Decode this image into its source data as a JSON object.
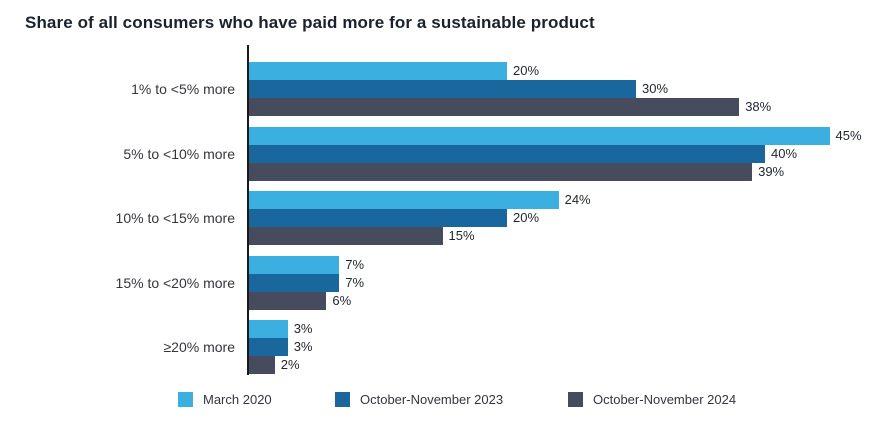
{
  "title": "Share of all consumers who have paid more for a sustainable product",
  "chart_data": {
    "type": "bar",
    "orientation": "horizontal",
    "title": "Share of all consumers who have paid more for a sustainable product",
    "categories": [
      "1% to <5% more",
      "5% to <10% more",
      "10% to <15% more",
      "15% to <20% more",
      "≥20% more"
    ],
    "series": [
      {
        "name": "March 2020",
        "color": "#3BAFDF",
        "values": [
          20,
          45,
          24,
          7,
          3
        ]
      },
      {
        "name": "October-November 2023",
        "color": "#1A679D",
        "values": [
          30,
          40,
          20,
          7,
          3
        ]
      },
      {
        "name": "October-November 2024",
        "color": "#474B5E",
        "values": [
          38,
          39,
          15,
          6,
          2
        ]
      }
    ],
    "value_label_suffix": "%",
    "xlim": [
      0,
      45
    ],
    "grid": false,
    "legend_position": "bottom",
    "axis_color": "#1a1a1a",
    "background_color": "#ffffff"
  }
}
